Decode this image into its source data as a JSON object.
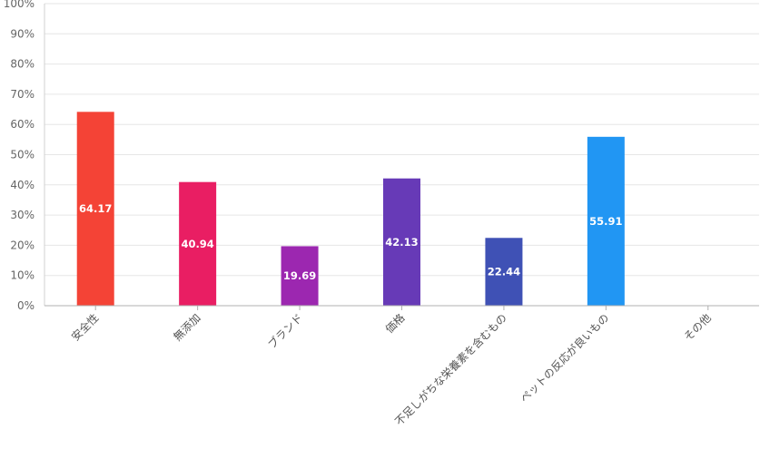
{
  "chart_data": {
    "type": "bar",
    "categories": [
      "安全性",
      "無添加",
      "ブランド",
      "価格",
      "不足しがちな栄養素を含むもの",
      "ペットの反応が良いもの",
      "その他"
    ],
    "values": [
      64.17,
      40.94,
      19.69,
      42.13,
      22.44,
      55.91,
      0
    ],
    "value_labels": [
      "64.17",
      "40.94",
      "19.69",
      "42.13",
      "22.44",
      "55.91",
      ""
    ],
    "colors": [
      "#f44336",
      "#e91e63",
      "#9c27b0",
      "#673ab7",
      "#3f51b5",
      "#2196f3",
      "#03a9f4"
    ],
    "ylim": [
      0,
      100
    ],
    "y_ticks": [
      "0%",
      "10%",
      "20%",
      "30%",
      "40%",
      "50%",
      "60%",
      "70%",
      "80%",
      "90%",
      "100%"
    ],
    "grid": true,
    "title": "",
    "xlabel": "",
    "ylabel": ""
  }
}
